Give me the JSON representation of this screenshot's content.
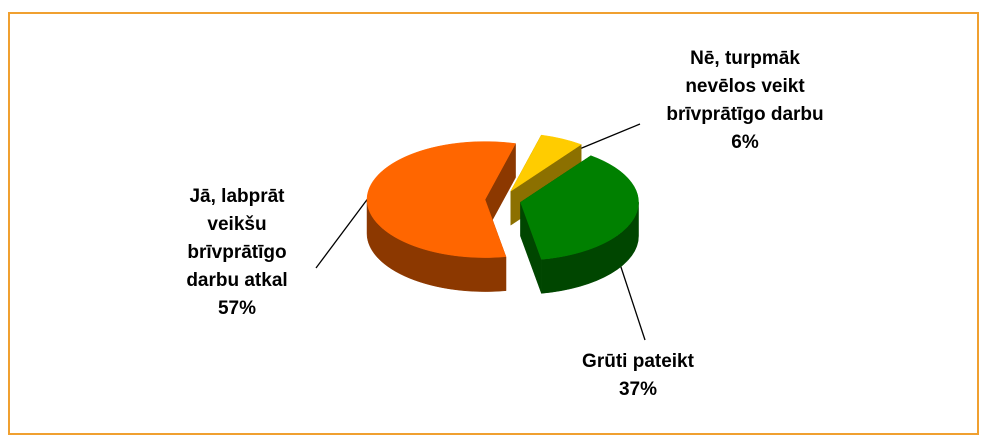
{
  "chart_data": {
    "type": "pie3d",
    "categories": [
      "Nē, turpmāk nevēlos veikt brīvprātīgo darbu",
      "Grūti pateikt",
      "Jā, labprāt veikšu brīvprātīgo darbu atkal"
    ],
    "values": [
      6,
      37,
      57
    ],
    "value_labels": [
      "6%",
      "37%",
      "57%"
    ],
    "colors": [
      "#ffcc00",
      "#008000",
      "#ff6600"
    ]
  }
}
